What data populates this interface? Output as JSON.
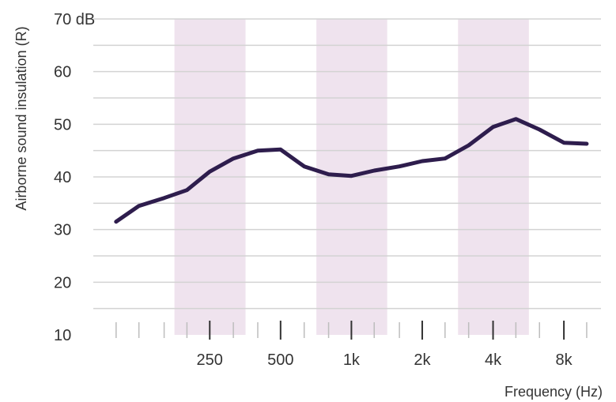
{
  "chart_data": {
    "type": "line",
    "title": "",
    "xlabel": "Frequency (Hz)",
    "ylabel": "Airborne sound insulation (R)",
    "x_scale": "log",
    "x_ticks": [
      {
        "value": 250,
        "label": "250"
      },
      {
        "value": 500,
        "label": "500"
      },
      {
        "value": 1000,
        "label": "1k"
      },
      {
        "value": 2000,
        "label": "2k"
      },
      {
        "value": 4000,
        "label": "4k"
      },
      {
        "value": 8000,
        "label": "8k"
      }
    ],
    "y_ticks": [
      {
        "value": 10,
        "label": "10"
      },
      {
        "value": 20,
        "label": "20"
      },
      {
        "value": 30,
        "label": "30"
      },
      {
        "value": 40,
        "label": "40"
      },
      {
        "value": 50,
        "label": "50"
      },
      {
        "value": 60,
        "label": "60"
      },
      {
        "value": 70,
        "label": "70 dB"
      }
    ],
    "ylim": [
      10,
      70
    ],
    "xlim": [
      80,
      11500
    ],
    "grid": true,
    "shaded_bands": [
      {
        "from": 177,
        "to": 355
      },
      {
        "from": 710,
        "to": 1420
      },
      {
        "from": 2840,
        "to": 5680
      }
    ],
    "minor_tick_frequencies": [
      100,
      125,
      160,
      200,
      250,
      315,
      400,
      500,
      630,
      800,
      1000,
      1250,
      1600,
      2000,
      2500,
      3150,
      4000,
      5000,
      6300,
      8000,
      10000
    ],
    "series": [
      {
        "x": [
          100,
          125,
          160,
          200,
          250,
          315,
          400,
          500,
          630,
          800,
          1000,
          1250,
          1600,
          2000,
          2500,
          3150,
          4000,
          5000,
          6300,
          8000,
          10000
        ],
        "values": [
          31.5,
          34.5,
          36,
          37.5,
          41,
          43.5,
          45,
          45.2,
          42,
          40.5,
          40.2,
          41.2,
          42,
          43,
          43.5,
          46,
          49.5,
          51,
          49,
          46.5,
          46.3
        ]
      }
    ],
    "colors": {
      "line": "#2e1d4d",
      "band": "#efe3ee",
      "grid": "#d3d3d3",
      "tick": "#333333",
      "minor_tick": "#bdbdbd"
    }
  }
}
